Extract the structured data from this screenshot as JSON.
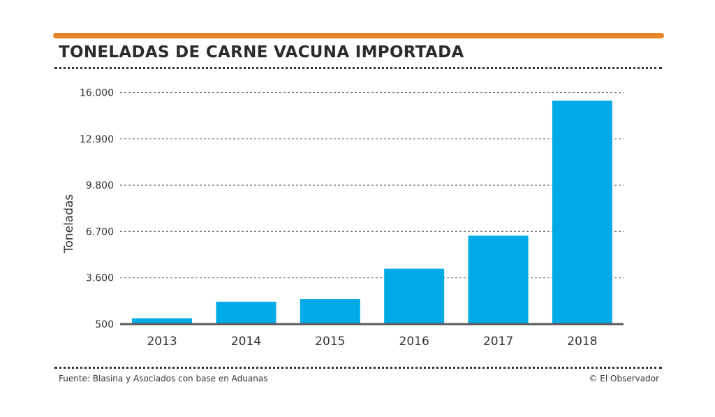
{
  "colors": {
    "accent": "#e8862c",
    "bar": "#00aae7",
    "axis": "#5a5a5a"
  },
  "chart_data": {
    "type": "bar",
    "title": "TONELADAS DE CARNE VACUNA IMPORTADA",
    "xlabel": "",
    "ylabel": "Toneladas",
    "categories": [
      "2013",
      "2014",
      "2015",
      "2016",
      "2017",
      "2018"
    ],
    "values": [
      890,
      2000,
      2180,
      4210,
      6420,
      15460
    ],
    "ylim": [
      500,
      16000
    ],
    "yticks": [
      500,
      3600,
      6700,
      9800,
      12900,
      16000
    ],
    "ytick_labels": [
      "500",
      "3.600",
      "6.700",
      "9.800",
      "12.900",
      "16.000"
    ],
    "grid": true
  },
  "footer": {
    "source": "Fuente: Blasina y Asociados con base en Aduanas",
    "credit": "© El Observador"
  }
}
